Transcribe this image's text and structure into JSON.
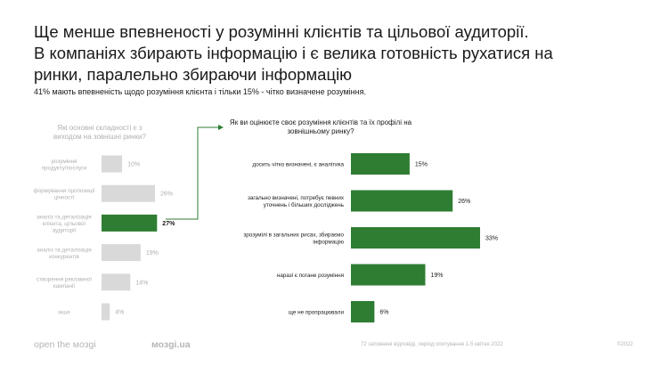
{
  "slide": {
    "title_lines": [
      "Ще менше впевненості у розумінні  клієнтів та цільової аудиторії.",
      "В компаніях збирають інформацію і є велика готовність рухатися на",
      "ринки, паралельно збираючи інформацію"
    ],
    "subtitle": "41% мають впевненість щодо розуміння клієнта і тільки 15% - чітко визначене розуміння."
  },
  "colors": {
    "highlight": "#2e7d32",
    "muted_bar": "#d9d9d9",
    "muted_text": "#b0b0b0",
    "dark_text": "#1a1a1a"
  },
  "chart_data": [
    {
      "type": "bar",
      "orientation": "horizontal",
      "title": "Які основні складності є з виходом на зовнішні ринки?",
      "categories": [
        "розуміння продукту/послуги",
        "формування пропозиції цінності",
        "аналіз та деталізація клієнта, цільової аудиторії",
        "аналіз та деталізація конкурентів",
        "створення рекламної кампанії",
        "інше"
      ],
      "values": [
        10,
        26,
        27,
        19,
        14,
        4
      ],
      "value_labels": [
        "10%",
        "26%",
        "27%",
        "19%",
        "14%",
        "4%"
      ],
      "highlighted_index": 2
    },
    {
      "type": "bar",
      "orientation": "horizontal",
      "title": "Як ви оцінюєте своє розуміння клієнтів та їх профілі на зовнішньому ринку?",
      "categories": [
        "досить чітко визначені, є аналітика",
        "загально визначені, потребує певних уточнень і більших досліджень",
        "зрозумілі в загальних рисах, збираємо інформацію",
        "наразі є погане розуміння",
        "ще не пропрацювали"
      ],
      "values": [
        15,
        26,
        33,
        19,
        6
      ],
      "value_labels": [
        "15%",
        "26%",
        "33%",
        "19%",
        "6%"
      ]
    }
  ],
  "footer": {
    "tagline": "open the мозgi",
    "site": "мозgi.ua",
    "note": "72 заповнені відповіді, період опитування 1-5 квітня 2022",
    "year": "©2022"
  }
}
